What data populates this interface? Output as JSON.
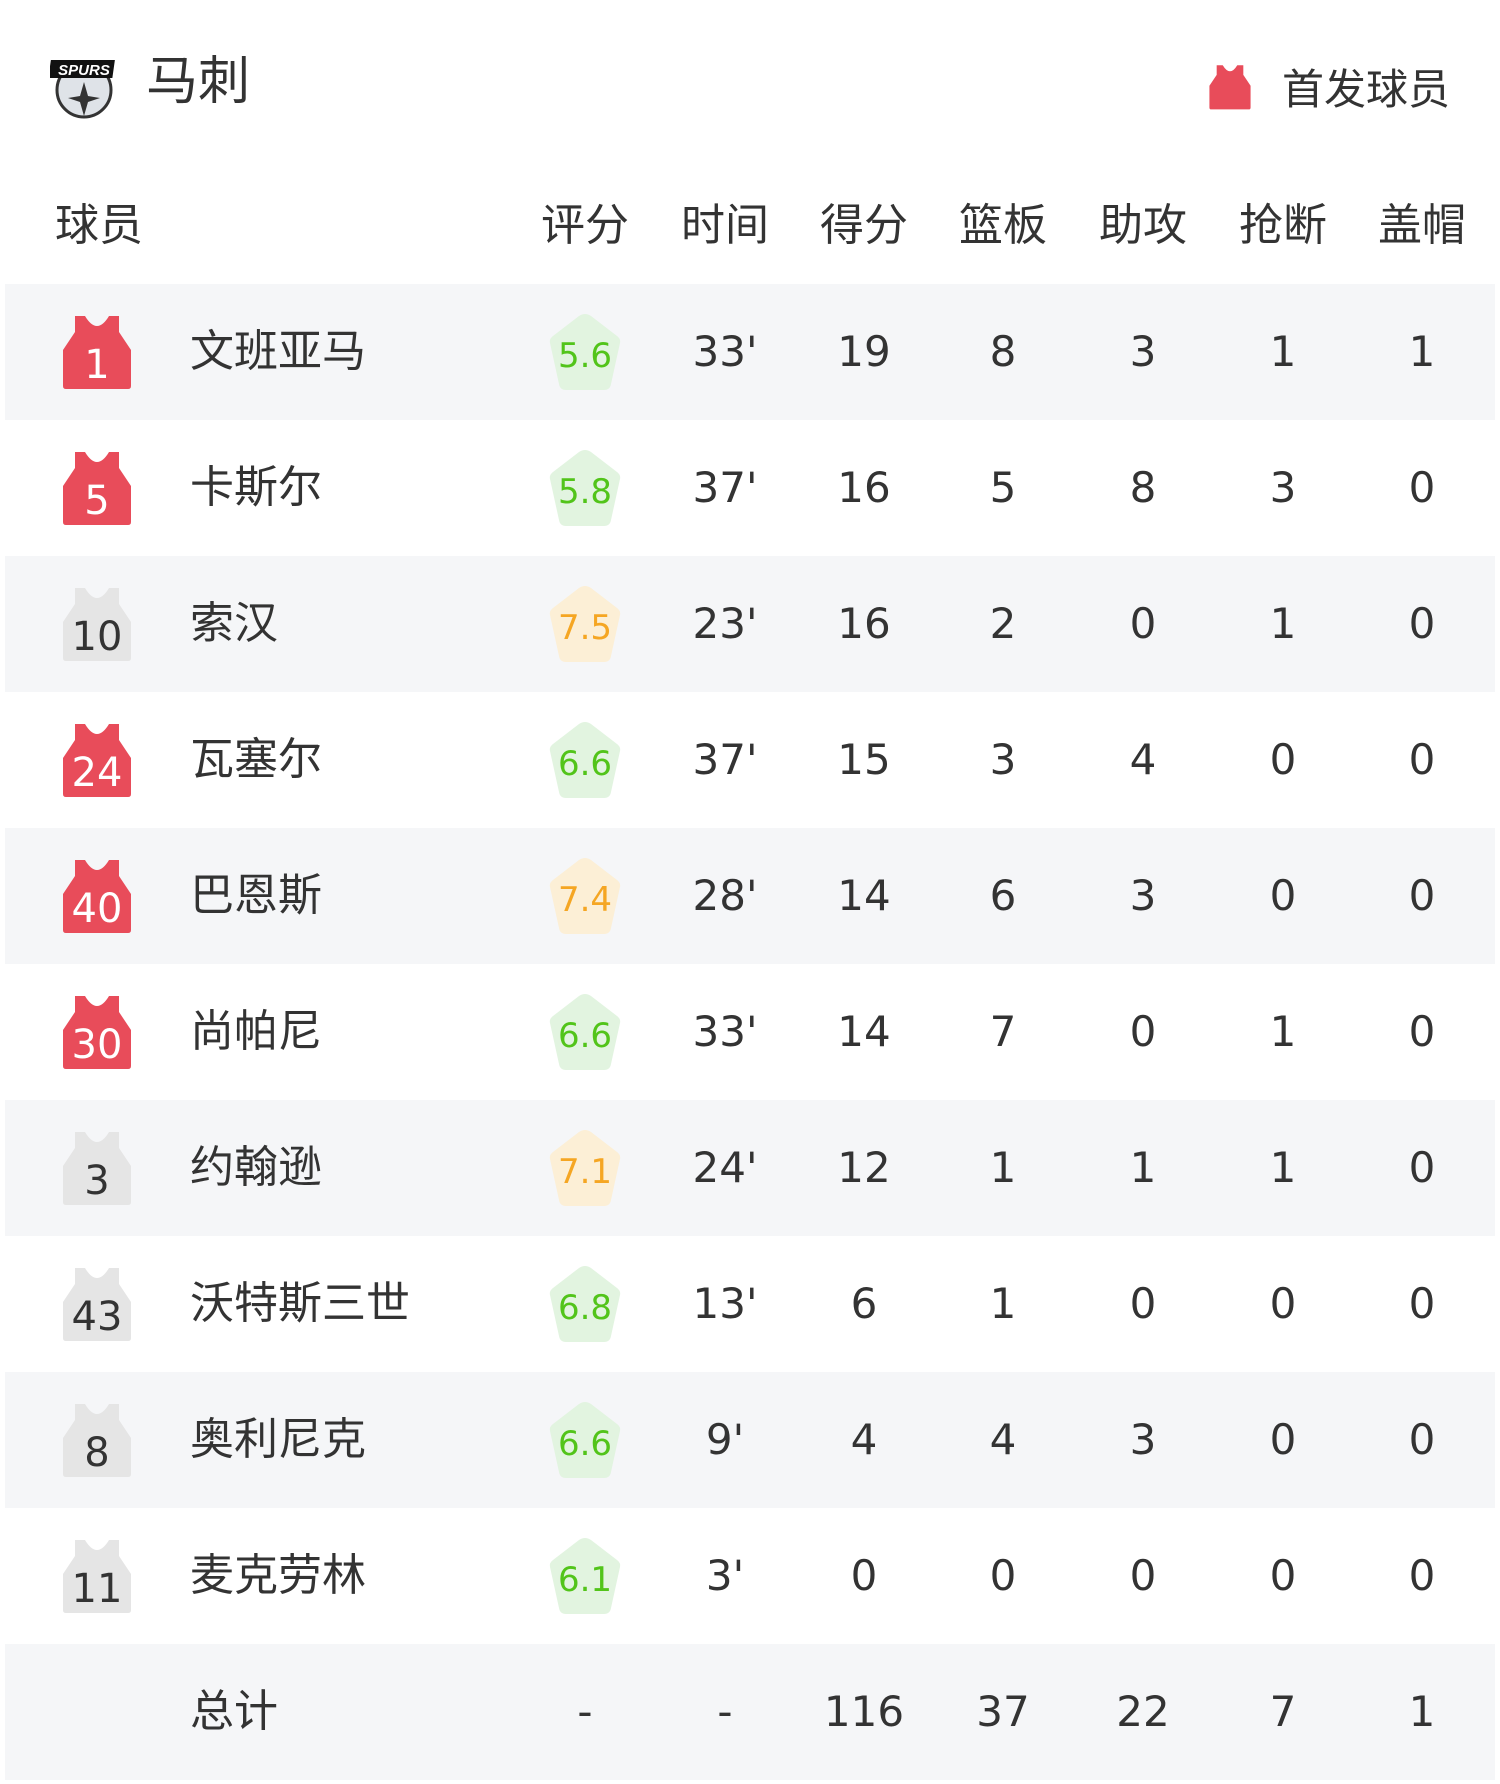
{
  "header": {
    "team_name": "马刺",
    "logo_text": "SPURS",
    "legend_label": "首发球员",
    "starter_color": "#e84c5a",
    "bench_color": "#e5e5e5"
  },
  "columns": [
    "球员",
    "评分",
    "时间",
    "得分",
    "篮板",
    "助攻",
    "抢断",
    "盖帽"
  ],
  "rating_colors": {
    "green_text": "#52c41a",
    "green_bg": "#e2f4e0",
    "orange_text": "#f5a623",
    "orange_bg": "#fcefd6"
  },
  "players": [
    {
      "number": "1",
      "name": "文班亚马",
      "starter": true,
      "rating": "5.6",
      "rating_tone": "green",
      "time": "33'",
      "pts": "19",
      "reb": "8",
      "ast": "3",
      "stl": "1",
      "blk": "1"
    },
    {
      "number": "5",
      "name": "卡斯尔",
      "starter": true,
      "rating": "5.8",
      "rating_tone": "green",
      "time": "37'",
      "pts": "16",
      "reb": "5",
      "ast": "8",
      "stl": "3",
      "blk": "0"
    },
    {
      "number": "10",
      "name": "索汉",
      "starter": false,
      "rating": "7.5",
      "rating_tone": "orange",
      "time": "23'",
      "pts": "16",
      "reb": "2",
      "ast": "0",
      "stl": "1",
      "blk": "0"
    },
    {
      "number": "24",
      "name": "瓦塞尔",
      "starter": true,
      "rating": "6.6",
      "rating_tone": "green",
      "time": "37'",
      "pts": "15",
      "reb": "3",
      "ast": "4",
      "stl": "0",
      "blk": "0"
    },
    {
      "number": "40",
      "name": "巴恩斯",
      "starter": true,
      "rating": "7.4",
      "rating_tone": "orange",
      "time": "28'",
      "pts": "14",
      "reb": "6",
      "ast": "3",
      "stl": "0",
      "blk": "0"
    },
    {
      "number": "30",
      "name": "尚帕尼",
      "starter": true,
      "rating": "6.6",
      "rating_tone": "green",
      "time": "33'",
      "pts": "14",
      "reb": "7",
      "ast": "0",
      "stl": "1",
      "blk": "0"
    },
    {
      "number": "3",
      "name": "约翰逊",
      "starter": false,
      "rating": "7.1",
      "rating_tone": "orange",
      "time": "24'",
      "pts": "12",
      "reb": "1",
      "ast": "1",
      "stl": "1",
      "blk": "0"
    },
    {
      "number": "43",
      "name": "沃特斯三世",
      "starter": false,
      "rating": "6.8",
      "rating_tone": "green",
      "time": "13'",
      "pts": "6",
      "reb": "1",
      "ast": "0",
      "stl": "0",
      "blk": "0"
    },
    {
      "number": "8",
      "name": "奥利尼克",
      "starter": false,
      "rating": "6.6",
      "rating_tone": "green",
      "time": "9'",
      "pts": "4",
      "reb": "4",
      "ast": "3",
      "stl": "0",
      "blk": "0"
    },
    {
      "number": "11",
      "name": "麦克劳林",
      "starter": false,
      "rating": "6.1",
      "rating_tone": "green",
      "time": "3'",
      "pts": "0",
      "reb": "0",
      "ast": "0",
      "stl": "0",
      "blk": "0"
    }
  ],
  "totals": {
    "label": "总计",
    "rating": "-",
    "time": "-",
    "pts": "116",
    "reb": "37",
    "ast": "22",
    "stl": "7",
    "blk": "1"
  }
}
